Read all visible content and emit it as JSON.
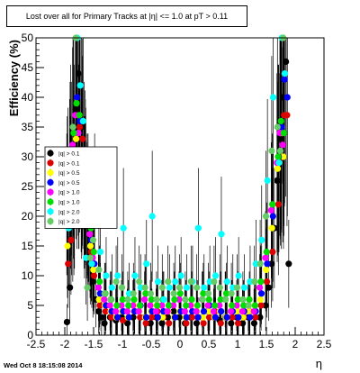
{
  "title": "Lost over all for Primary Tracks at |η| <= 1.0 at pT > 0.11",
  "timestamp": "Wed Oct  8 18:15:08 2014",
  "chart_data": {
    "type": "scatter",
    "xlabel": "η",
    "ylabel": "Efficiency (%)",
    "xlim": [
      -2.5,
      2.5
    ],
    "ylim": [
      0,
      50
    ],
    "x_ticks": [
      -2.5,
      -2,
      -1.5,
      -1,
      -0.5,
      0,
      0.5,
      1,
      1.5,
      2,
      2.5
    ],
    "x_tick_labels": [
      "-2.5",
      "-2",
      "-1.5",
      "-1",
      "-0.5",
      "0",
      "0.5",
      "1",
      "1.5",
      "2",
      "2.5"
    ],
    "y_ticks": [
      0,
      5,
      10,
      15,
      20,
      25,
      30,
      35,
      40,
      45,
      50
    ],
    "y_tick_labels": [
      "0",
      "5",
      "10",
      "15",
      "20",
      "25",
      "30",
      "35",
      "40",
      "45",
      "50"
    ],
    "grid": false,
    "legend_position": "left-middle",
    "series": [
      {
        "name": "|q| > 0.1",
        "color": "#000000",
        "x": [
          -1.95,
          -1.9,
          -1.85,
          -1.8,
          -1.75,
          -1.7,
          -1.65,
          -1.6,
          -1.55,
          -1.5,
          -1.45,
          -1.4,
          -1.35,
          -1.3,
          -1.2,
          -1.1,
          -1.0,
          -0.9,
          -0.8,
          -0.7,
          -0.6,
          -0.5,
          -0.4,
          -0.3,
          -0.2,
          -0.1,
          0.0,
          0.1,
          0.2,
          0.3,
          0.4,
          0.5,
          0.6,
          0.7,
          0.8,
          0.9,
          1.0,
          1.1,
          1.2,
          1.3,
          1.4,
          1.5,
          1.55,
          1.6,
          1.65,
          1.7,
          1.75,
          1.8,
          1.85,
          1.9
        ],
        "y": [
          2.2,
          8,
          20,
          38,
          44,
          35,
          28,
          22,
          15,
          9,
          6,
          4,
          3,
          2,
          3,
          2.5,
          3,
          2,
          3,
          4,
          3,
          2,
          3,
          2,
          3,
          4,
          3,
          2,
          3,
          2,
          3,
          4,
          3,
          2.5,
          3,
          2,
          3,
          2,
          3,
          2,
          3,
          5,
          8,
          12,
          18,
          26,
          33,
          40,
          46,
          12
        ]
      },
      {
        "name": "|q| > 0.1",
        "color": "#dd0000",
        "x": [
          -1.95,
          -1.9,
          -1.85,
          -1.8,
          -1.75,
          -1.7,
          -1.65,
          -1.6,
          -1.55,
          -1.5,
          -1.4,
          -1.3,
          -1.2,
          -1.1,
          -1.0,
          -0.9,
          -0.8,
          -0.7,
          -0.6,
          -0.5,
          -0.4,
          -0.3,
          -0.2,
          -0.1,
          0.0,
          0.1,
          0.2,
          0.3,
          0.4,
          0.5,
          0.6,
          0.7,
          0.8,
          0.9,
          1.0,
          1.1,
          1.2,
          1.3,
          1.4,
          1.5,
          1.6,
          1.7,
          1.75,
          1.8,
          1.85
        ],
        "y": [
          12,
          16,
          22,
          30,
          35,
          33,
          26,
          20,
          14,
          10,
          5,
          4,
          3,
          3,
          2.5,
          3,
          4,
          3,
          2,
          3,
          4,
          3,
          2,
          3,
          4,
          2,
          3,
          3,
          2,
          3,
          4,
          2,
          3,
          3,
          2,
          3,
          4,
          3,
          5,
          9,
          14,
          22,
          30,
          37,
          37
        ]
      },
      {
        "name": "|q| > 0.5",
        "color": "#ffff00",
        "x": [
          -1.95,
          -1.9,
          -1.85,
          -1.8,
          -1.75,
          -1.7,
          -1.65,
          -1.6,
          -1.55,
          -1.5,
          -1.4,
          -1.3,
          -1.2,
          -1.1,
          -1.0,
          -0.9,
          -0.8,
          -0.7,
          -0.6,
          -0.5,
          -0.4,
          -0.3,
          -0.2,
          -0.1,
          0.0,
          0.1,
          0.2,
          0.3,
          0.4,
          0.5,
          0.6,
          0.7,
          0.8,
          0.9,
          1.0,
          1.1,
          1.2,
          1.3,
          1.4,
          1.5,
          1.6,
          1.7,
          1.75,
          1.8
        ],
        "y": [
          15,
          24,
          27,
          33,
          30,
          28,
          24,
          19,
          15,
          11,
          6,
          5,
          4,
          3,
          4,
          3,
          5,
          4,
          3,
          4,
          5,
          3,
          4,
          3,
          4,
          3,
          5,
          4,
          3,
          4,
          3,
          4,
          3,
          5,
          4,
          3,
          4,
          5,
          6,
          11,
          18,
          28,
          34,
          30
        ]
      },
      {
        "name": "|q| > 0.5",
        "color": "#0000ff",
        "x": [
          -1.95,
          -1.9,
          -1.85,
          -1.8,
          -1.75,
          -1.7,
          -1.65,
          -1.6,
          -1.55,
          -1.5,
          -1.4,
          -1.3,
          -1.2,
          -1.1,
          -1.0,
          -0.9,
          -0.8,
          -0.7,
          -0.6,
          -0.5,
          -0.4,
          -0.3,
          -0.2,
          -0.1,
          0.0,
          0.1,
          0.2,
          0.3,
          0.4,
          0.5,
          0.6,
          0.7,
          0.8,
          0.9,
          1.0,
          1.1,
          1.2,
          1.3,
          1.4,
          1.5,
          1.6,
          1.7,
          1.75,
          1.8,
          1.85
        ],
        "y": [
          20,
          28,
          30,
          40,
          36,
          30,
          25,
          20,
          16,
          12,
          7,
          5,
          4,
          3,
          4,
          3,
          4,
          5,
          3,
          4,
          3,
          4,
          5,
          3,
          4,
          3,
          4,
          3,
          4,
          5,
          3,
          4,
          3,
          4,
          3,
          4,
          3,
          4,
          7,
          12,
          20,
          30,
          35,
          43,
          40
        ]
      },
      {
        "name": "|q| > 1.0",
        "color": "#ff00ff",
        "x": [
          -1.95,
          -1.9,
          -1.85,
          -1.8,
          -1.75,
          -1.7,
          -1.65,
          -1.6,
          -1.55,
          -1.5,
          -1.4,
          -1.3,
          -1.2,
          -1.1,
          -1.0,
          -0.9,
          -0.8,
          -0.7,
          -0.6,
          -0.5,
          -0.4,
          -0.3,
          -0.2,
          -0.1,
          0.0,
          0.1,
          0.2,
          0.3,
          0.4,
          0.5,
          0.6,
          0.7,
          0.8,
          0.9,
          1.0,
          1.1,
          1.2,
          1.3,
          1.4,
          1.5,
          1.6,
          1.7,
          1.75,
          1.8
        ],
        "y": [
          22,
          26,
          32,
          37,
          34,
          29,
          24,
          21,
          17,
          13,
          8,
          6,
          5,
          4,
          5,
          4,
          5,
          4,
          6,
          5,
          4,
          5,
          4,
          5,
          6,
          4,
          5,
          4,
          6,
          5,
          4,
          5,
          6,
          4,
          5,
          4,
          5,
          4,
          8,
          13,
          21,
          29,
          34,
          32
        ]
      },
      {
        "name": "|q| > 1.0",
        "color": "#00dd00",
        "x": [
          -1.95,
          -1.9,
          -1.85,
          -1.8,
          -1.75,
          -1.7,
          -1.65,
          -1.6,
          -1.55,
          -1.5,
          -1.4,
          -1.3,
          -1.2,
          -1.1,
          -1.0,
          -0.9,
          -0.8,
          -0.7,
          -0.6,
          -0.5,
          -0.4,
          -0.3,
          -0.2,
          -0.1,
          0.0,
          0.1,
          0.2,
          0.3,
          0.4,
          0.5,
          0.6,
          0.7,
          0.8,
          0.9,
          1.0,
          1.1,
          1.2,
          1.3,
          1.4,
          1.5,
          1.6,
          1.7,
          1.75,
          1.8
        ],
        "y": [
          25,
          30,
          34,
          39,
          37,
          31,
          27,
          22,
          18,
          14,
          9,
          7,
          6,
          5,
          6,
          5,
          6,
          5,
          7,
          6,
          5,
          6,
          5,
          6,
          7,
          5,
          6,
          5,
          7,
          6,
          5,
          6,
          7,
          5,
          6,
          5,
          6,
          5,
          9,
          14,
          22,
          30,
          36,
          34
        ]
      },
      {
        "name": "|q| > 2.0",
        "color": "#00ffff",
        "x": [
          -1.95,
          -1.9,
          -1.85,
          -1.8,
          -1.75,
          -1.7,
          -1.65,
          -1.6,
          -1.55,
          -1.5,
          -1.4,
          -1.3,
          -1.2,
          -1.1,
          -1.0,
          -0.9,
          -0.8,
          -0.7,
          -0.6,
          -0.5,
          -0.4,
          -0.3,
          -0.2,
          -0.1,
          0.0,
          0.1,
          0.2,
          0.3,
          0.4,
          0.5,
          0.6,
          0.7,
          0.8,
          0.9,
          1.0,
          1.1,
          1.2,
          1.3,
          1.4,
          1.5,
          1.6,
          1.7,
          1.75,
          1.8
        ],
        "y": [
          18,
          22,
          24,
          50,
          42,
          36,
          13,
          19,
          12,
          22,
          14,
          10,
          8,
          10,
          18,
          7,
          10,
          8,
          12,
          20,
          9,
          6,
          8,
          9,
          10,
          8,
          9,
          18,
          8,
          9,
          10,
          17,
          9,
          8,
          10,
          8,
          9,
          12,
          16,
          26,
          40,
          29,
          50,
          44
        ]
      },
      {
        "name": "|q| > 2.0",
        "color": "#66cc66",
        "x": [
          -1.95,
          -1.9,
          -1.85,
          -1.8,
          -1.75,
          -1.7,
          -1.65,
          -1.6,
          -1.55,
          -1.5,
          -1.4,
          -1.3,
          -1.2,
          -1.1,
          -1.0,
          -0.9,
          -0.8,
          -0.7,
          -0.6,
          -0.5,
          -0.4,
          -0.3,
          -0.2,
          -0.1,
          0.0,
          0.1,
          0.2,
          0.3,
          0.4,
          0.5,
          0.6,
          0.7,
          0.8,
          0.9,
          1.0,
          1.1,
          1.2,
          1.3,
          1.4,
          1.5,
          1.6,
          1.7,
          1.75,
          1.8
        ],
        "y": [
          24,
          28,
          35,
          50,
          30,
          27,
          21,
          8,
          13,
          16,
          11,
          7,
          6,
          9,
          8,
          6,
          7,
          9,
          8,
          7,
          6,
          8,
          9,
          7,
          8,
          6,
          9,
          8,
          6,
          7,
          9,
          8,
          6,
          7,
          8,
          6,
          5,
          9,
          12,
          20,
          31,
          35,
          31,
          50
        ]
      }
    ]
  }
}
